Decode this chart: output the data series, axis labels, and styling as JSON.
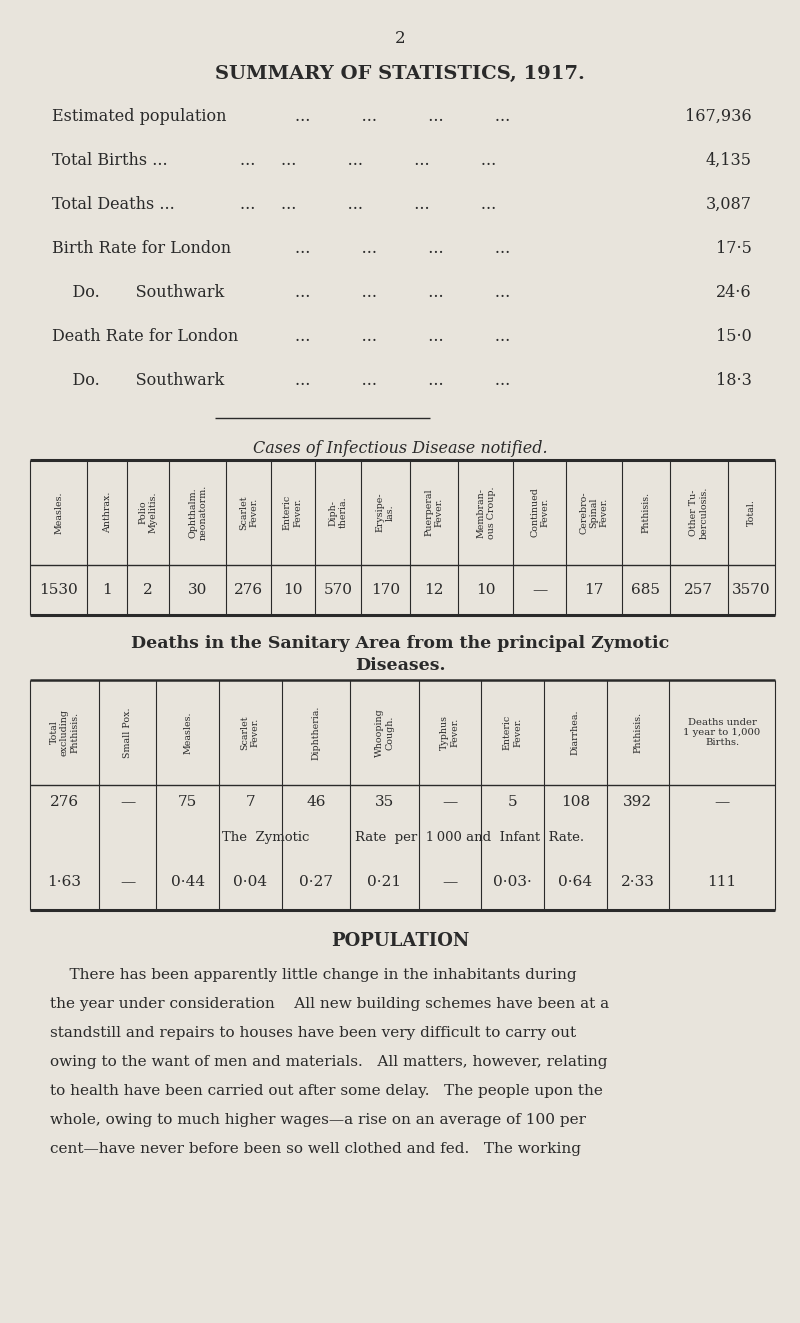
{
  "bg_color": "#e8e4dc",
  "text_color": "#2a2a2a",
  "page_number": "2",
  "title": "SUMMARY OF STATISTICS, 1917.",
  "summary_rows": [
    {
      "label": "Estimated population",
      "dots": "...          ...          ...          ...",
      "value": "167,936"
    },
    {
      "label": "Total Births ...",
      "dots2": "...          ...          ...          ...          ...",
      "value": "4,135"
    },
    {
      "label": "Total Deaths ...",
      "dots2": "...          ...          ...          ...          ...",
      "value": "3,087"
    },
    {
      "label": "Birth Rate for London",
      "dots2": "...       ...          ...          ...",
      "value": "17·5"
    },
    {
      "label": "    Do.       Southwark",
      "dots2": "...          ...          ...          ...",
      "value": "24·6"
    },
    {
      "label": "Death Rate for London",
      "dots2": "...          ...          ...          ...",
      "value": "15·0"
    },
    {
      "label": "    Do.       Southwark",
      "dots2": "...          ...          ...          ...",
      "value": "18·3"
    }
  ],
  "infectious_title": "Cases of Infectious Disease notified.",
  "infectious_headers": [
    "Measles.",
    "Anthrax.",
    "Polio\nMyelitis.",
    "Ophthalm.\nneonatorm.",
    "Scarlet\nFever.",
    "Enteric\nFever.",
    "Diph-\ntheria.",
    "Erysipe-\nlas.",
    "Puerperal\nFever.",
    "Membran-\nous Croup.",
    "Continued\nFever.",
    "Cerebro-\nSpinal\nFever.",
    "Phthisis.",
    "Other Tu-\nberculosis.",
    "Total."
  ],
  "infectious_values": [
    "1530",
    "1",
    "2",
    "30",
    "276",
    "10",
    "570",
    "170",
    "12",
    "10",
    "—",
    "17",
    "685",
    "257",
    "3570"
  ],
  "zymotic_headers": [
    "Total\nexcluding\nPhthisis.",
    "Small Pox.",
    "Measles.",
    "Scarlet\nFever.",
    "Diphtheria.",
    "Whooping\nCough.",
    "Typhus\nFever.",
    "Enteric\nFever.",
    "Diarrhea.",
    "Phthisis.",
    "Deaths under\n1 year to 1,000\nBirths."
  ],
  "zymotic_values1": [
    "276",
    "—",
    "75",
    "7",
    "46",
    "35",
    "—",
    "5",
    "108",
    "392",
    "—"
  ],
  "zymotic_values2": [
    "1·63",
    "—",
    "0·44",
    "0·04",
    "0·27",
    "0·21",
    "—",
    "0·03·",
    "0·64",
    "2·33",
    "111"
  ],
  "population_title": "POPULATION",
  "population_lines": [
    "    There has been apparently little change in the inhabitants during",
    "the year under consideration    All new building schemes have been at a",
    "standstill and repairs to houses have been very difficult to carry out",
    "owing to the want of men and materials.   All matters, however, relating",
    "to health have been carried out after some delay.   The people upon the",
    "whole, owing to much higher wages—a rise on an average of 100 per",
    "cent—have never before been so well clothed and fed.   The working"
  ]
}
